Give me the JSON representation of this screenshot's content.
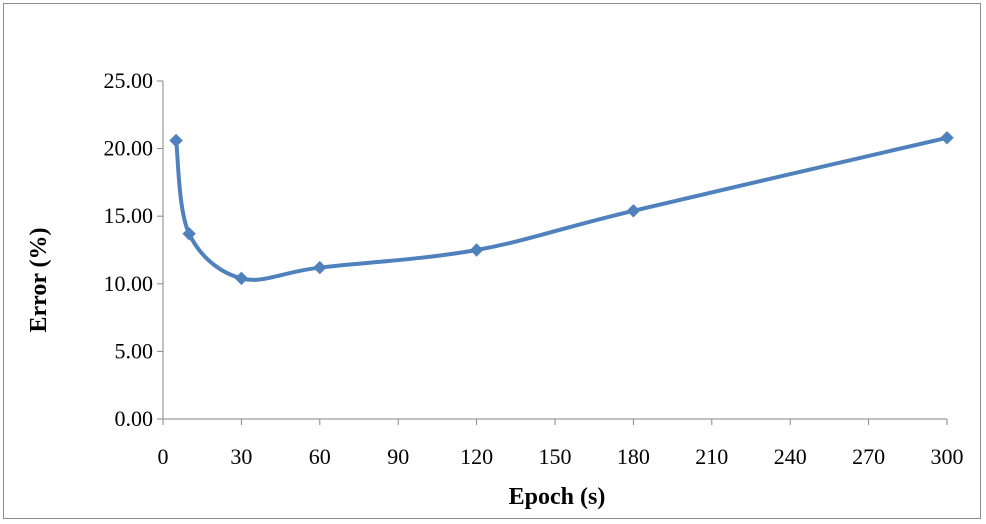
{
  "chart_data": {
    "type": "line",
    "title": "",
    "xlabel": "Epoch (s)",
    "ylabel": "Error (%)",
    "xlim": [
      0,
      300
    ],
    "ylim": [
      0,
      25
    ],
    "xticks": [
      "0",
      "30",
      "60",
      "90",
      "120",
      "150",
      "180",
      "210",
      "240",
      "270",
      "300"
    ],
    "yticks": [
      "0.00",
      "5.00",
      "10.00",
      "15.00",
      "20.00",
      "25.00"
    ],
    "grid": false,
    "legend": "none",
    "series": [
      {
        "color": "#4f81bd",
        "marker": "diamond",
        "smooth": true,
        "x": [
          5,
          10,
          30,
          60,
          120,
          180,
          300
        ],
        "y": [
          20.6,
          13.7,
          10.4,
          11.2,
          12.5,
          15.4,
          20.8
        ]
      }
    ]
  }
}
